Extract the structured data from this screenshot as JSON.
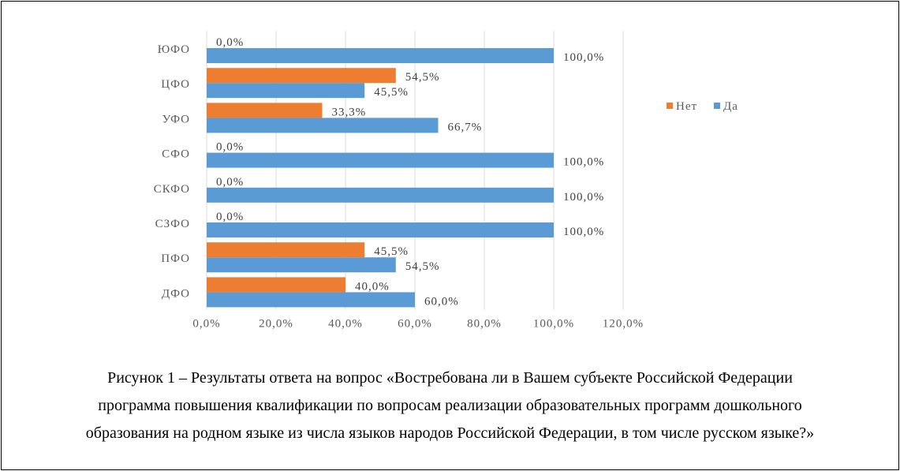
{
  "chart_data": {
    "type": "bar",
    "orientation": "horizontal",
    "categories": [
      "ЮФО",
      "ЦФО",
      "УФО",
      "СФО",
      "СКФО",
      "СЗФО",
      "ПФО",
      "ДФО"
    ],
    "series": [
      {
        "name": "Нет",
        "color": "#ED7D31",
        "values": [
          0.0,
          54.5,
          33.3,
          0.0,
          0.0,
          0.0,
          45.5,
          40.0
        ],
        "labels": [
          "0,0%",
          "54,5%",
          "33,3%",
          "0,0%",
          "0,0%",
          "0,0%",
          "45,5%",
          "40,0%"
        ]
      },
      {
        "name": "Да",
        "color": "#5B9BD5",
        "values": [
          100.0,
          45.5,
          66.7,
          100.0,
          100.0,
          100.0,
          54.5,
          60.0
        ],
        "labels": [
          "100,0%",
          "45,5%",
          "66,7%",
          "100,0%",
          "100,0%",
          "100,0%",
          "54,5%",
          "60,0%"
        ]
      }
    ],
    "xlim": [
      0,
      120
    ],
    "ticks": [
      0,
      20,
      40,
      60,
      80,
      100,
      120
    ],
    "tick_labels": [
      "0,0%",
      "20,0%",
      "40,0%",
      "60,0%",
      "80,0%",
      "100,0%",
      "120,0%"
    ],
    "grid": true,
    "legend_position": "right"
  },
  "caption": {
    "line1": "Рисунок 1  – Результаты ответа на вопрос «Востребована ли в Вашем субъекте Российской Федерации",
    "line2": "программа повышения квалификации по вопросам реализации образовательных программ дошкольного",
    "line3": "образования на родном языке из числа языков народов Российской Федерации, в том числе русском языке?»"
  }
}
